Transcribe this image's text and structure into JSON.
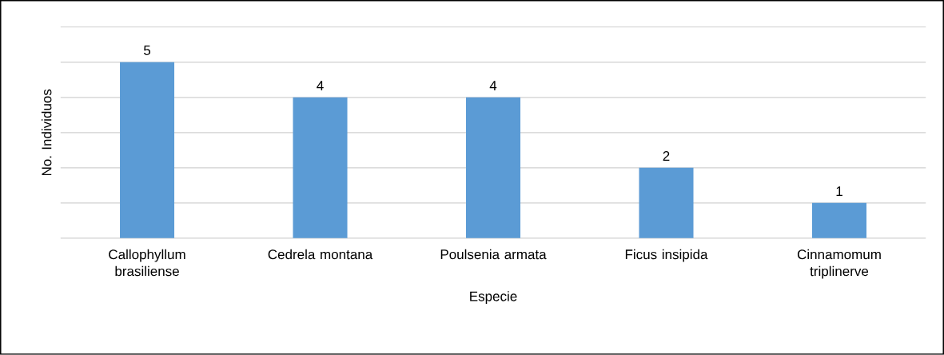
{
  "chart_data": {
    "type": "bar",
    "xlabel": "Especie",
    "ylabel": "No. Individuos",
    "categories": [
      "Callophyllum brasiliense",
      "Cedrela montana",
      "Poulsenia armata",
      "Ficus insipida",
      "Cinnamomum triplinerve"
    ],
    "values": [
      5,
      4,
      4,
      2,
      1
    ],
    "color": "#5b9bd5",
    "ylim": [
      0,
      6
    ],
    "yticks": [
      {
        "value": 0,
        "label": null
      },
      {
        "value": 1,
        "label": null
      },
      {
        "value": 2,
        "label": null
      },
      {
        "value": 3,
        "label": null
      },
      {
        "value": 4,
        "label": null
      },
      {
        "value": 5,
        "label": null
      },
      {
        "value": 6,
        "label": null
      }
    ],
    "tick_labels": "x",
    "grid": "y",
    "data_labels": true
  }
}
